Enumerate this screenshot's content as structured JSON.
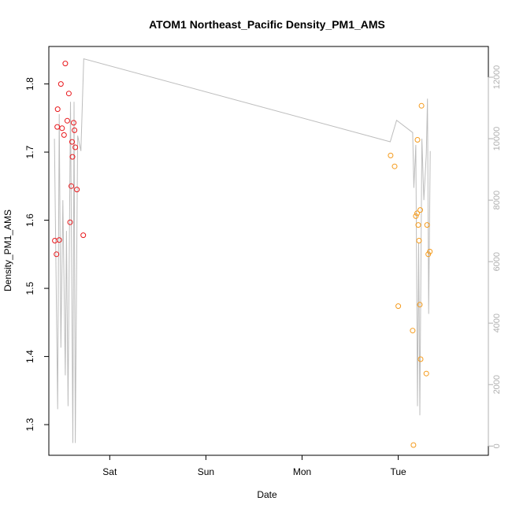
{
  "chart_data": {
    "type": "scatter",
    "title": "ATOM1 Northeast_Pacific Density_PM1_AMS",
    "xlabel": "Date",
    "ylabel": "Density_PM1_AMS",
    "x_ticks": [
      "Sat",
      "Sun",
      "Mon",
      "Tue"
    ],
    "y_ticks": [
      "1.3",
      "1.4",
      "1.5",
      "1.6",
      "1.7",
      "1.8"
    ],
    "y_right_ticks": [
      "0",
      "2000",
      "4000",
      "6000",
      "8000",
      "10000",
      "12000"
    ],
    "xlim_hours": [
      -15.2,
      94.5
    ],
    "ylim": [
      1.255,
      1.855
    ],
    "ylim_right": [
      -300,
      13000
    ],
    "grid": false,
    "colors": {
      "red_points": "#e8171b",
      "orange_points": "#f59b1c",
      "line": "#bdbdbd",
      "right_axis": "#b0b0b0"
    },
    "series": [
      {
        "points_hours": [
          [
            -13.7,
            1.57
          ],
          [
            -13.3,
            1.55
          ],
          [
            -13.1,
            1.737
          ],
          [
            -13.0,
            1.763
          ],
          [
            -12.6,
            1.571
          ],
          [
            -12.2,
            1.8
          ],
          [
            -11.9,
            1.735
          ],
          [
            -11.4,
            1.725
          ],
          [
            -11.1,
            1.83
          ],
          [
            -10.6,
            1.746
          ],
          [
            -10.2,
            1.786
          ],
          [
            -9.9,
            1.597
          ],
          [
            -9.6,
            1.65
          ],
          [
            -9.4,
            1.715
          ],
          [
            -9.3,
            1.693
          ],
          [
            -9.0,
            1.743
          ],
          [
            -8.8,
            1.732
          ],
          [
            -8.6,
            1.707
          ],
          [
            -8.2,
            1.645
          ],
          [
            -6.6,
            1.578
          ]
        ]
      },
      {
        "points_hours": [
          [
            70.1,
            1.695
          ],
          [
            71.1,
            1.679
          ],
          [
            72.0,
            1.474
          ],
          [
            75.6,
            1.438
          ],
          [
            75.8,
            1.27
          ],
          [
            76.4,
            1.606
          ],
          [
            76.7,
            1.61
          ],
          [
            76.8,
            1.718
          ],
          [
            77.0,
            1.593
          ],
          [
            77.2,
            1.57
          ],
          [
            77.4,
            1.476
          ],
          [
            77.5,
            1.615
          ],
          [
            77.6,
            1.396
          ],
          [
            77.8,
            1.768
          ],
          [
            79.0,
            1.375
          ],
          [
            79.2,
            1.593
          ],
          [
            79.5,
            1.55
          ],
          [
            79.9,
            1.554
          ]
        ]
      },
      {
        "line_hours": [
          [
            -13.8,
            10000
          ],
          [
            -13.0,
            1200
          ],
          [
            -12.6,
            10800
          ],
          [
            -12.2,
            3200
          ],
          [
            -11.7,
            8000
          ],
          [
            -11.1,
            2300
          ],
          [
            -10.8,
            7000
          ],
          [
            -10.4,
            1300
          ],
          [
            -9.8,
            11200
          ],
          [
            -9.2,
            100
          ],
          [
            -8.9,
            11200
          ],
          [
            -8.6,
            100
          ],
          [
            -8.0,
            10100
          ],
          [
            -7.2,
            9600
          ],
          [
            -6.5,
            12600
          ],
          [
            70.0,
            9900
          ],
          [
            71.6,
            10600
          ],
          [
            75.6,
            10200
          ],
          [
            75.9,
            8400
          ],
          [
            76.4,
            9800
          ],
          [
            76.8,
            1300
          ],
          [
            77.1,
            6600
          ],
          [
            77.4,
            1000
          ],
          [
            77.9,
            10000
          ],
          [
            78.4,
            8000
          ],
          [
            79.0,
            9500
          ],
          [
            79.3,
            11300
          ],
          [
            79.6,
            4300
          ],
          [
            80.0,
            9600
          ]
        ]
      }
    ]
  }
}
